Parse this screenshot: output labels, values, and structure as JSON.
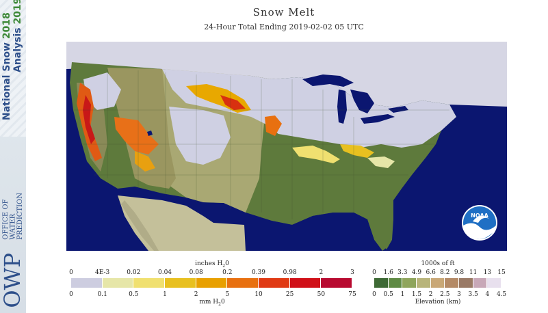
{
  "branding": {
    "title_line1": "National Snow",
    "year1": "2018",
    "title_line2": "Analysis",
    "year2": "2019",
    "agency_abbr": "OWP",
    "agency_line1": "OFFICE OF",
    "agency_line2": "WATER",
    "agency_line3": "PREDICTION",
    "noaa": "NOAA"
  },
  "header": {
    "title": "Snow Melt",
    "subtitle": "24-Hour Total Ending 2019-02-02 05 UTC"
  },
  "colors": {
    "water": "#0b1670",
    "no_data": "#b8b8a0",
    "snow_none": "#d2d2e2",
    "accent_noaa": "#1f6fc4"
  },
  "melt_legend": {
    "top_unit": "inches H",
    "top_unit_sub": "2",
    "top_unit_tail": "0",
    "bottom_unit": "mm H",
    "bottom_unit_sub": "2",
    "bottom_unit_tail": "0",
    "inch_labels": [
      "0",
      "4E-3",
      "0.02",
      "0.04",
      "0.08",
      "0.2",
      "0.39",
      "0.98",
      "2",
      "3"
    ],
    "mm_labels": [
      "0",
      "0.1",
      "0.5",
      "1",
      "2",
      "5",
      "10",
      "25",
      "50",
      "75"
    ],
    "swatch_colors": [
      "#cdcde0",
      "#e6e6a8",
      "#f0e070",
      "#e8c020",
      "#e8a000",
      "#e87010",
      "#e03a14",
      "#d01018",
      "#b80a30"
    ]
  },
  "elevation_legend": {
    "top_unit": "1000s of ft",
    "bottom_unit": "Elevation (km)",
    "ft_labels": [
      "0",
      "1.6",
      "3.3",
      "4.9",
      "6.6",
      "8.2",
      "9.8",
      "11",
      "13",
      "15"
    ],
    "km_labels": [
      "0",
      "0.5",
      "1",
      "1.5",
      "2",
      "2.5",
      "3",
      "3.5",
      "4",
      "4.5"
    ],
    "swatch_colors": [
      "#3e6a35",
      "#5f8a44",
      "#8fa55c",
      "#b8b47a",
      "#c9a877",
      "#b48a66",
      "#9a7a66",
      "#c8a8b8",
      "#e8e0ee"
    ]
  }
}
